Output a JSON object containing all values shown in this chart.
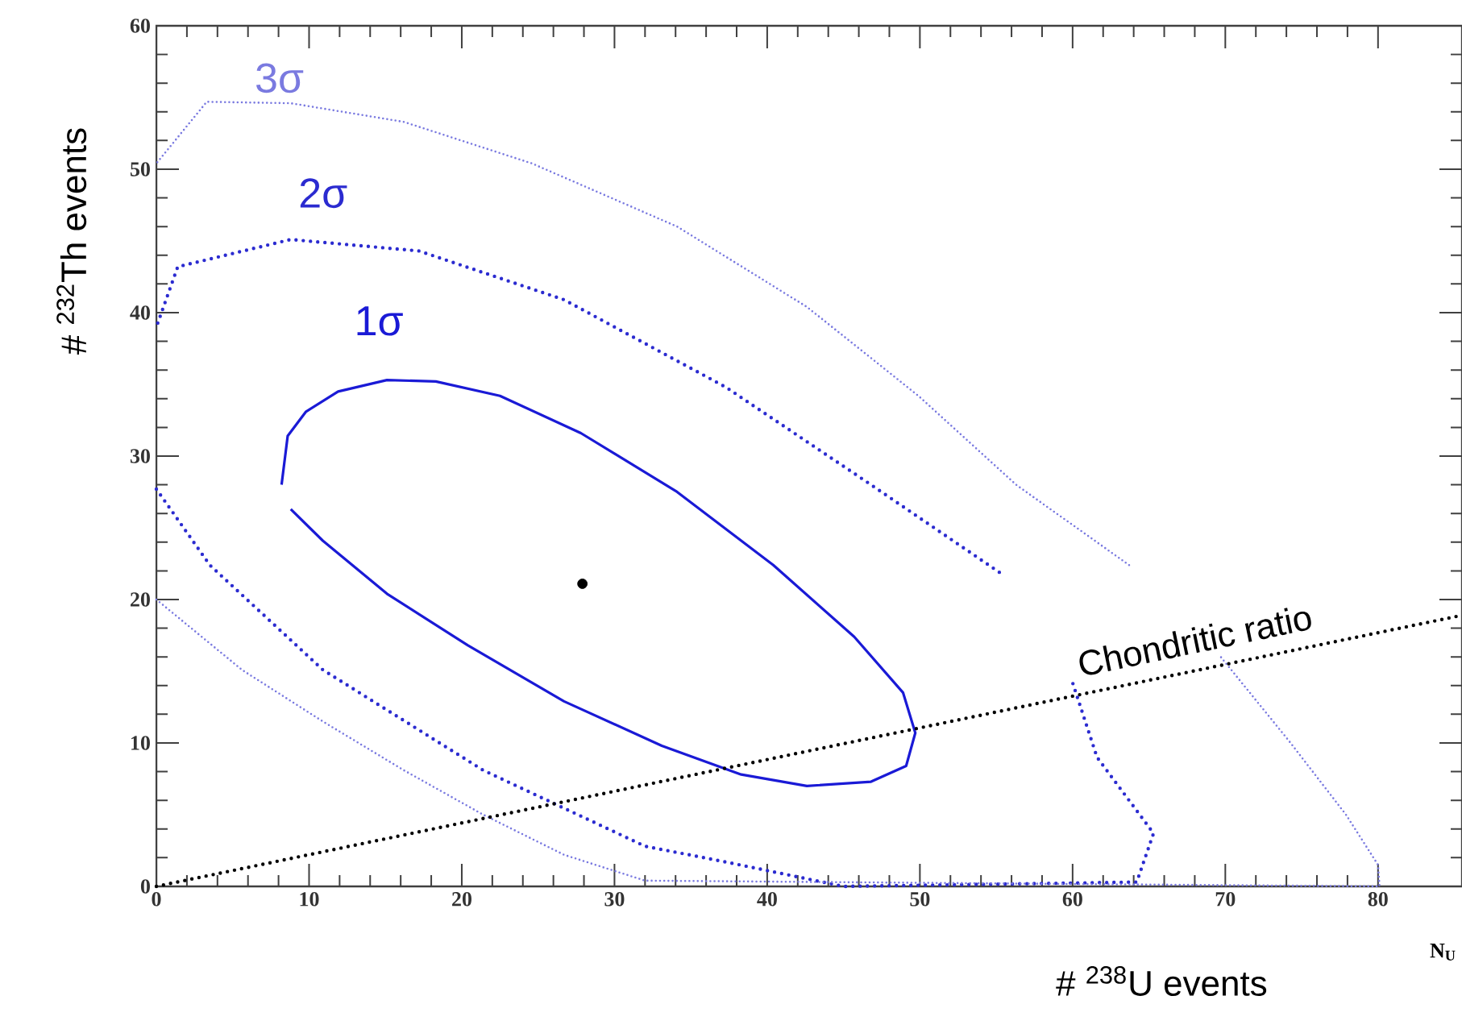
{
  "chart_data": {
    "type": "line",
    "xlabel": "# $^{238}$U events",
    "ylabel": "# $^{232}$Th events",
    "xlim": [
      0,
      85.5
    ],
    "ylim": [
      0,
      60
    ],
    "xticks": [
      0,
      10,
      20,
      30,
      40,
      50,
      60,
      70,
      80
    ],
    "yticks": [
      0,
      10,
      20,
      30,
      40,
      50,
      60
    ],
    "annotations": [
      "N$_{U}$"
    ],
    "series": [
      {
        "name": "1σ",
        "color": "#1a1ad6",
        "line_style": "solid",
        "marker": "none",
        "x": [
          8.2,
          8.6,
          9.8,
          11.9,
          15.1,
          18.3,
          22.5,
          27.8,
          34.1,
          40.4,
          45.7,
          48.9,
          49.7,
          49.1,
          46.8,
          42.6,
          38.3,
          33.1,
          26.7,
          20.4,
          15.1,
          10.9,
          8.8
        ],
        "values": [
          28,
          31.4,
          33.1,
          34.5,
          35.3,
          35.2,
          34.2,
          31.6,
          27.5,
          22.4,
          17.4,
          13.5,
          10.7,
          8.4,
          7.3,
          7,
          7.8,
          9.8,
          12.9,
          16.8,
          20.4,
          24.1,
          26.3
        ]
      },
      {
        "name": "2σ",
        "color": "#2b2bd0",
        "line_style": "dotted",
        "marker": "none",
        "x": [
          55.2,
          46.8,
          37.3,
          26.7,
          17.2,
          8.8,
          1.4,
          0,
          null,
          0,
          3.5,
          10.9,
          21.4,
          32,
          37.3,
          45,
          64.2,
          65.3,
          61.6,
          60
        ],
        "values": [
          21.9,
          28,
          34.8,
          40.9,
          44.3,
          45.1,
          43.2,
          39,
          null,
          27.7,
          22.4,
          15.1,
          8.1,
          2.8,
          1.7,
          0,
          0.3,
          3.7,
          9,
          14.2
        ]
      },
      {
        "name": "3σ",
        "color": "#7a7ae0",
        "line_style": "dotted",
        "marker": "none",
        "x": [
          63.7,
          56.3,
          49.9,
          42.6,
          34.1,
          24.6,
          16.2,
          8.8,
          3.3,
          0,
          null,
          0,
          5.6,
          10.9,
          16.2,
          21.4,
          26.7,
          32,
          80.1,
          80,
          77.9,
          74.2,
          69.7
        ],
        "values": [
          22.4,
          28,
          34.2,
          40.4,
          46,
          50.4,
          53.3,
          54.6,
          54.7,
          50.4,
          null,
          20,
          15.1,
          11.5,
          8.1,
          5,
          2.2,
          0.4,
          0,
          1.5,
          5,
          10.1,
          16
        ]
      },
      {
        "name": "Chondritic ratio",
        "color": "#000000",
        "line_style": "dotted",
        "marker": "none",
        "x": [
          0,
          85.5
        ],
        "values": [
          0,
          18.9
        ]
      },
      {
        "type": "scatter",
        "color": "#000000",
        "marker": "circle",
        "x": [
          27.9
        ],
        "values": [
          21.1
        ]
      }
    ]
  }
}
